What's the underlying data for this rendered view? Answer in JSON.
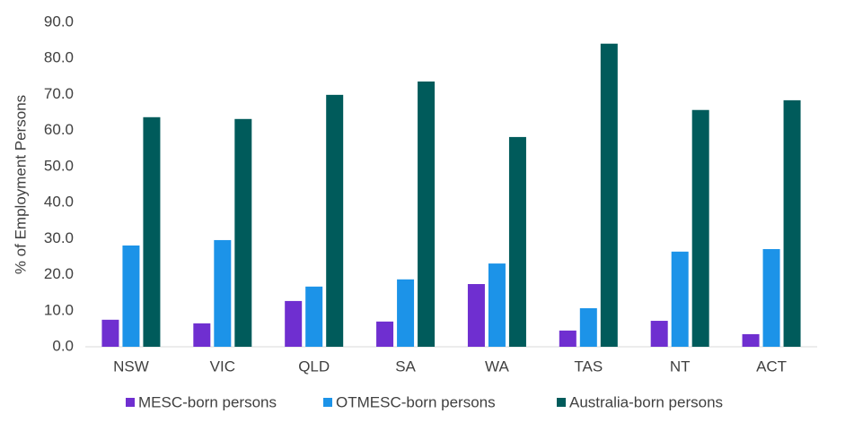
{
  "chart_data": {
    "type": "bar",
    "y_label": "% of Employment Persons",
    "categories": [
      "NSW",
      "VIC",
      "QLD",
      "SA",
      "WA",
      "TAS",
      "NT",
      "ACT"
    ],
    "series": [
      {
        "name": "MESC-born persons",
        "color": "#6f2fd0",
        "values": [
          7.5,
          6.5,
          12.7,
          7.0,
          17.4,
          4.5,
          7.2,
          3.5
        ]
      },
      {
        "name": "OTMESC-born persons",
        "color": "#1c93e8",
        "values": [
          28.1,
          29.6,
          16.7,
          18.7,
          23.1,
          10.7,
          26.4,
          27.1
        ]
      },
      {
        "name": "Australia-born persons",
        "color": "#005b5b",
        "values": [
          63.7,
          63.2,
          69.9,
          73.6,
          58.2,
          84.1,
          65.7,
          68.4
        ]
      }
    ],
    "ylim": [
      0,
      90
    ],
    "yticks": [
      {
        "value": 0,
        "label": "0.0"
      },
      {
        "value": 10,
        "label": "10.0"
      },
      {
        "value": 20,
        "label": "20.0"
      },
      {
        "value": 30,
        "label": "30.0"
      },
      {
        "value": 40,
        "label": "40.0"
      },
      {
        "value": 50,
        "label": "50.0"
      },
      {
        "value": 60,
        "label": "60.0"
      },
      {
        "value": 70,
        "label": "70.0"
      },
      {
        "value": 80,
        "label": "80.0"
      },
      {
        "value": 90,
        "label": "90.0"
      }
    ],
    "grid": false
  }
}
